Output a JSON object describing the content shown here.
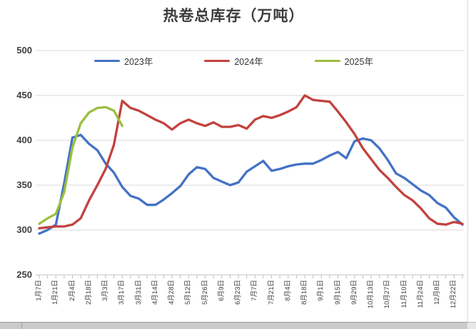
{
  "chart": {
    "title": "热卷总库存（万吨）",
    "legend": [
      {
        "label": "2023年",
        "color": "#4472C4"
      },
      {
        "label": "2024年",
        "color": "#C2423E"
      },
      {
        "label": "2025年",
        "color": "#9CBE3D"
      }
    ],
    "y_axis": {
      "ticks": [
        "500",
        "450",
        "400",
        "350",
        "300",
        "250"
      ]
    },
    "x_axis": {
      "labels": [
        "1月7日",
        "1月21日",
        "2月4日",
        "2月18日",
        "3月3日",
        "3月17日",
        "3月31日",
        "4月14日",
        "4月28日",
        "5月12日",
        "5月26日",
        "6月9日",
        "6月23日",
        "7月7日",
        "7月21日",
        "8月4日",
        "8月18日",
        "9月1日",
        "9月15日",
        "9月29日",
        "10月13日",
        "10月27日",
        "11月10日",
        "11月24日",
        "12月8日",
        "12月22日"
      ]
    },
    "colors": {
      "gridline": "#D9D9D9",
      "axis": "#C6C6C6",
      "tick": "#BFBFBF"
    }
  },
  "chart_data": {
    "type": "line",
    "title": "热卷总库存（万吨）",
    "xlabel": "",
    "ylabel": "",
    "ylim": [
      250,
      500
    ],
    "y_gridlines": [
      250,
      300,
      350,
      400,
      450,
      500
    ],
    "grid": "horizontal",
    "legend_position": "top",
    "x": [
      "1月7日",
      "1月14日",
      "1月21日",
      "1月28日",
      "2月4日",
      "2月11日",
      "2月18日",
      "2月25日",
      "3月3日",
      "3月10日",
      "3月17日",
      "3月24日",
      "3月31日",
      "4月7日",
      "4月14日",
      "4月21日",
      "4月28日",
      "5月5日",
      "5月12日",
      "5月19日",
      "5月26日",
      "6月2日",
      "6月9日",
      "6月16日",
      "6月23日",
      "6月30日",
      "7月7日",
      "7月14日",
      "7月21日",
      "7月28日",
      "8月4日",
      "8月11日",
      "8月18日",
      "8月25日",
      "9月1日",
      "9月8日",
      "9月15日",
      "9月22日",
      "9月29日",
      "10月6日",
      "10月13日",
      "10月20日",
      "10月27日",
      "11月3日",
      "11月10日",
      "11月17日",
      "11月24日",
      "12月1日",
      "12月8日",
      "12月15日",
      "12月22日",
      "12月29日"
    ],
    "x_tick_labels_shown_every": 2,
    "series": [
      {
        "name": "2023年",
        "color": "#4472C4",
        "values": [
          296,
          300,
          306,
          352,
          403,
          406,
          396,
          389,
          374,
          364,
          348,
          338,
          335,
          328,
          328,
          334,
          341,
          349,
          362,
          370,
          368,
          358,
          354,
          350,
          353,
          365,
          371,
          377,
          366,
          368,
          371,
          373,
          374,
          374,
          378,
          383,
          387,
          380,
          399,
          402,
          400,
          391,
          378,
          363,
          358,
          351,
          344,
          339,
          330,
          325,
          314,
          306
        ]
      },
      {
        "name": "2024年",
        "color": "#C2423E",
        "values": [
          302,
          303,
          304,
          304,
          306,
          313,
          333,
          350,
          368,
          395,
          444,
          436,
          433,
          428,
          423,
          419,
          412,
          419,
          423,
          419,
          416,
          420,
          415,
          415,
          417,
          413,
          423,
          427,
          425,
          428,
          432,
          437,
          450,
          445,
          444,
          443,
          432,
          420,
          407,
          391,
          379,
          367,
          358,
          348,
          339,
          333,
          324,
          313,
          307,
          306,
          309,
          307
        ]
      },
      {
        "name": "2025年",
        "color": "#9CBE3D",
        "values": [
          307,
          313,
          318,
          342,
          392,
          419,
          431,
          436,
          437,
          433,
          416
        ]
      }
    ]
  }
}
